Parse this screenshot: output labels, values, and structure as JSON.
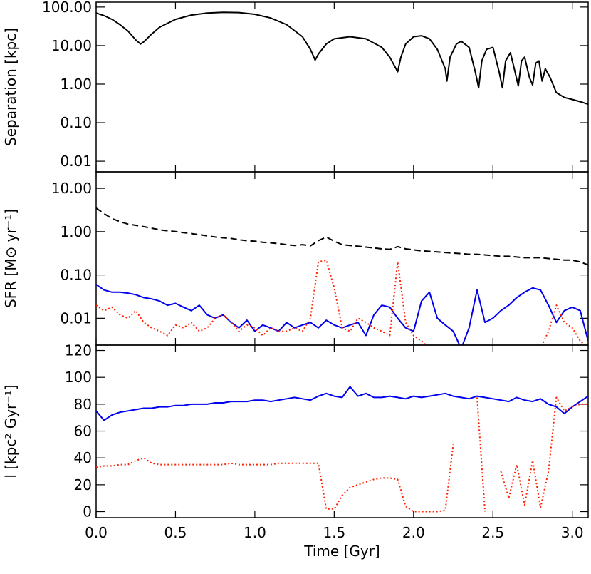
{
  "chart_data": [
    {
      "type": "line",
      "ylabel": "Separation [kpc]",
      "log_y": true,
      "xlim": [
        0,
        3.1
      ],
      "ylim": [
        0.0053,
        134
      ],
      "yticks": [
        {
          "value": 0.01,
          "label": "0.01"
        },
        {
          "value": 0.1,
          "label": "0.10"
        },
        {
          "value": 1,
          "label": "1.00"
        },
        {
          "value": 10,
          "label": "10.00"
        },
        {
          "value": 100,
          "label": "100.00"
        }
      ],
      "x": [
        0,
        0.05,
        0.1,
        0.15,
        0.2,
        0.25,
        0.28,
        0.3,
        0.35,
        0.4,
        0.5,
        0.6,
        0.7,
        0.8,
        0.9,
        1.0,
        1.1,
        1.2,
        1.3,
        1.35,
        1.38,
        1.4,
        1.45,
        1.5,
        1.6,
        1.7,
        1.8,
        1.85,
        1.9,
        1.92,
        1.95,
        2.0,
        2.05,
        2.1,
        2.15,
        2.2,
        2.21,
        2.23,
        2.27,
        2.3,
        2.35,
        2.39,
        2.41,
        2.43,
        2.46,
        2.5,
        2.54,
        2.56,
        2.58,
        2.61,
        2.64,
        2.66,
        2.68,
        2.7,
        2.73,
        2.75,
        2.77,
        2.79,
        2.81,
        2.83,
        2.86,
        2.9,
        2.95,
        3.0,
        3.05,
        3.1
      ],
      "series": [
        {
          "color": "#000000",
          "dash": "solid",
          "values": [
            70,
            60,
            48,
            35,
            24,
            14,
            11,
            12.5,
            20,
            30,
            48,
            62,
            70,
            73,
            72,
            65,
            52,
            35,
            17,
            8,
            4.2,
            6,
            11,
            15,
            17,
            15,
            9,
            5,
            2.1,
            5,
            11,
            17,
            18,
            15,
            8,
            2.5,
            1.2,
            5,
            11,
            13,
            9,
            2,
            0.8,
            4,
            8,
            9,
            2,
            0.8,
            4,
            6.5,
            2,
            0.9,
            4,
            5,
            1.5,
            0.95,
            3.5,
            4,
            1.2,
            2.5,
            1.5,
            0.6,
            0.45,
            0.4,
            0.35,
            0.3
          ]
        }
      ]
    },
    {
      "type": "line",
      "ylabel": "SFR [M⊙ yr⁻¹]",
      "log_y": true,
      "xlim": [
        0,
        3.1
      ],
      "ylim": [
        0.0024,
        24
      ],
      "yticks": [
        {
          "value": 0.01,
          "label": "0.01"
        },
        {
          "value": 0.1,
          "label": "0.10"
        },
        {
          "value": 1,
          "label": "1.00"
        },
        {
          "value": 10,
          "label": "10.00"
        }
      ],
      "x": [
        0,
        0.05,
        0.1,
        0.15,
        0.2,
        0.25,
        0.3,
        0.35,
        0.4,
        0.45,
        0.5,
        0.55,
        0.6,
        0.65,
        0.7,
        0.75,
        0.8,
        0.85,
        0.9,
        0.95,
        1.0,
        1.05,
        1.1,
        1.15,
        1.2,
        1.25,
        1.3,
        1.35,
        1.4,
        1.45,
        1.5,
        1.55,
        1.6,
        1.65,
        1.7,
        1.75,
        1.8,
        1.85,
        1.9,
        1.95,
        2.0,
        2.05,
        2.1,
        2.15,
        2.2,
        2.25,
        2.3,
        2.35,
        2.4,
        2.45,
        2.5,
        2.55,
        2.6,
        2.65,
        2.7,
        2.75,
        2.8,
        2.85,
        2.9,
        2.95,
        3.0,
        3.05,
        3.1
      ],
      "series": [
        {
          "color": "#000000",
          "dash": "dashed",
          "values": [
            3.5,
            2.6,
            2.0,
            1.7,
            1.5,
            1.4,
            1.3,
            1.2,
            1.1,
            1.05,
            1.0,
            0.95,
            0.9,
            0.85,
            0.8,
            0.75,
            0.72,
            0.7,
            0.65,
            0.62,
            0.6,
            0.57,
            0.55,
            0.53,
            0.5,
            0.48,
            0.5,
            0.47,
            0.62,
            0.75,
            0.6,
            0.5,
            0.48,
            0.46,
            0.44,
            0.42,
            0.4,
            0.39,
            0.45,
            0.4,
            0.38,
            0.36,
            0.35,
            0.34,
            0.33,
            0.32,
            0.31,
            0.3,
            0.3,
            0.29,
            0.28,
            0.27,
            0.27,
            0.26,
            0.25,
            0.25,
            0.25,
            0.24,
            0.23,
            0.22,
            0.22,
            0.2,
            0.17
          ]
        },
        {
          "color": "#0000ee",
          "dash": "solid",
          "values": [
            0.06,
            0.045,
            0.04,
            0.04,
            0.038,
            0.035,
            0.03,
            0.028,
            0.025,
            0.02,
            0.022,
            0.018,
            0.015,
            0.02,
            0.012,
            0.01,
            0.012,
            0.008,
            0.006,
            0.009,
            0.005,
            0.007,
            0.006,
            0.005,
            0.008,
            0.006,
            0.007,
            0.008,
            0.006,
            0.009,
            0.007,
            0.006,
            0.007,
            0.008,
            0.004,
            0.012,
            0.02,
            0.018,
            0.01,
            0.006,
            0.005,
            0.025,
            0.04,
            0.01,
            0.007,
            0.005,
            0.002,
            0.006,
            0.045,
            0.008,
            0.01,
            0.015,
            0.02,
            0.03,
            0.04,
            0.05,
            0.045,
            0.02,
            0.008,
            0.015,
            0.018,
            0.015,
            0.003
          ]
        },
        {
          "color": "#ff2200",
          "dash": "dotted",
          "values": [
            0.02,
            0.015,
            0.018,
            0.012,
            0.01,
            0.015,
            0.008,
            0.006,
            0.005,
            0.004,
            0.007,
            0.006,
            0.008,
            0.005,
            0.006,
            0.01,
            0.012,
            0.008,
            0.005,
            0.007,
            0.006,
            0.004,
            0.006,
            0.005,
            0.005,
            0.006,
            0.005,
            0.01,
            0.2,
            0.22,
            0.05,
            0.006,
            0.005,
            0.01,
            0.008,
            0.006,
            0.005,
            0.004,
            0.2,
            0.008,
            0.004,
            0.003,
            0.002,
            0.002,
            0.002,
            0.002,
            0.002,
            0.002,
            0.002,
            0.002,
            0.002,
            0.002,
            0.002,
            0.002,
            0.002,
            0.002,
            0.002,
            0.005,
            0.02,
            0.008,
            0.006,
            0.003,
            0.002
          ]
        }
      ]
    },
    {
      "type": "line",
      "ylabel": "l [kpc² Gyr⁻¹]",
      "xlabel": "Time [Gyr]",
      "log_y": false,
      "xlim": [
        0,
        3.1
      ],
      "ylim": [
        -4.5,
        124
      ],
      "yticks": [
        0,
        20,
        40,
        60,
        80,
        100,
        120
      ],
      "xticks": [
        {
          "value": 0,
          "label": "0.0"
        },
        0.5,
        {
          "value": 1,
          "label": "1.0"
        },
        1.5,
        {
          "value": 2,
          "label": "2.0"
        },
        2.5,
        {
          "value": 3,
          "label": "3.0"
        }
      ],
      "x": [
        0,
        0.05,
        0.1,
        0.15,
        0.2,
        0.25,
        0.3,
        0.35,
        0.4,
        0.45,
        0.5,
        0.55,
        0.6,
        0.65,
        0.7,
        0.75,
        0.8,
        0.85,
        0.9,
        0.95,
        1.0,
        1.05,
        1.1,
        1.15,
        1.2,
        1.25,
        1.3,
        1.35,
        1.4,
        1.45,
        1.5,
        1.55,
        1.6,
        1.65,
        1.7,
        1.75,
        1.8,
        1.85,
        1.9,
        1.95,
        2.0,
        2.05,
        2.1,
        2.15,
        2.2,
        2.25,
        2.3,
        2.35,
        2.4,
        2.45,
        2.5,
        2.55,
        2.6,
        2.65,
        2.7,
        2.75,
        2.8,
        2.85,
        2.9,
        2.95,
        3.0,
        3.05,
        3.1
      ],
      "series": [
        {
          "color": "#0000ee",
          "dash": "solid",
          "values": [
            75,
            68,
            72,
            74,
            75,
            76,
            77,
            77,
            78,
            78,
            79,
            79,
            80,
            80,
            80,
            81,
            81,
            82,
            82,
            82,
            83,
            83,
            82,
            83,
            84,
            85,
            84,
            83,
            86,
            88,
            86,
            85,
            93,
            86,
            88,
            85,
            85,
            86,
            85,
            84,
            86,
            85,
            86,
            87,
            88,
            86,
            85,
            84,
            86,
            85,
            84,
            83,
            82,
            85,
            83,
            82,
            84,
            80,
            78,
            73,
            78,
            82,
            86
          ]
        },
        {
          "color": "#ff2200",
          "dash": "dotted",
          "values": [
            33,
            34,
            34,
            35,
            35,
            38,
            40,
            36,
            35,
            35,
            35,
            35,
            35,
            35,
            35,
            35,
            35,
            36,
            35,
            35,
            35,
            35,
            35,
            36,
            36,
            36,
            36,
            36,
            36,
            2,
            2,
            12,
            18,
            20,
            22,
            24,
            25,
            25,
            24,
            4,
            0,
            0,
            0,
            0,
            1,
            50,
            null,
            null,
            85,
            0,
            null,
            30,
            10,
            35,
            5,
            38,
            3,
            30,
            85,
            75,
            78,
            80,
            80
          ]
        }
      ]
    }
  ]
}
